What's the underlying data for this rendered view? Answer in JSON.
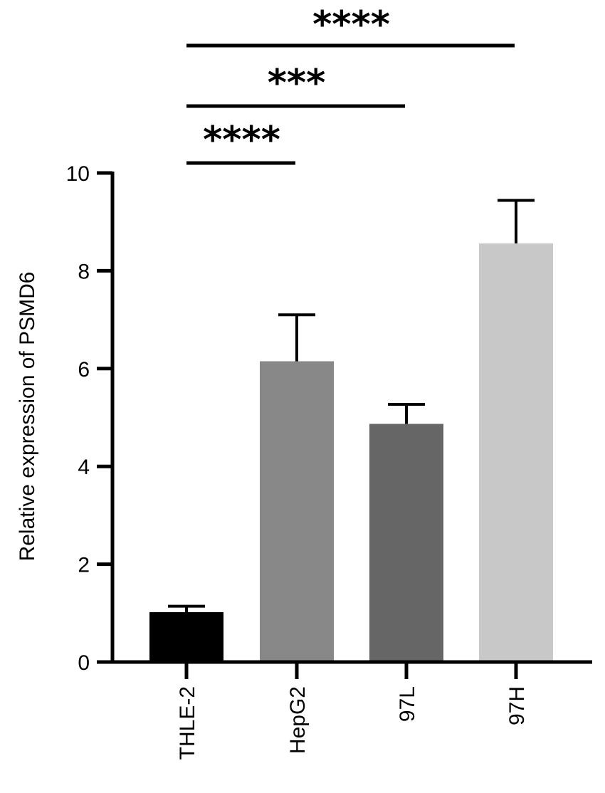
{
  "chart_data": {
    "type": "bar",
    "categories": [
      "THLE-2",
      "HepG2",
      "97L",
      "97H"
    ],
    "values": [
      1.02,
      6.15,
      4.87,
      8.56
    ],
    "errors": [
      0.12,
      0.95,
      0.4,
      0.88
    ],
    "colors": [
      "#000000",
      "#888888",
      "#666666",
      "#c8c8c8"
    ],
    "ylabel": "Relative expression of PSMD6",
    "xlabel": "",
    "ylim": [
      0,
      10
    ],
    "yticks": [
      "0",
      "2",
      "4",
      "6",
      "8",
      "10"
    ],
    "grid": false,
    "legend": "none",
    "significance": [
      {
        "from": "THLE-2",
        "to": "HepG2",
        "label": "****"
      },
      {
        "from": "THLE-2",
        "to": "97L",
        "label": "***"
      },
      {
        "from": "THLE-2",
        "to": "97H",
        "label": "****"
      }
    ]
  }
}
